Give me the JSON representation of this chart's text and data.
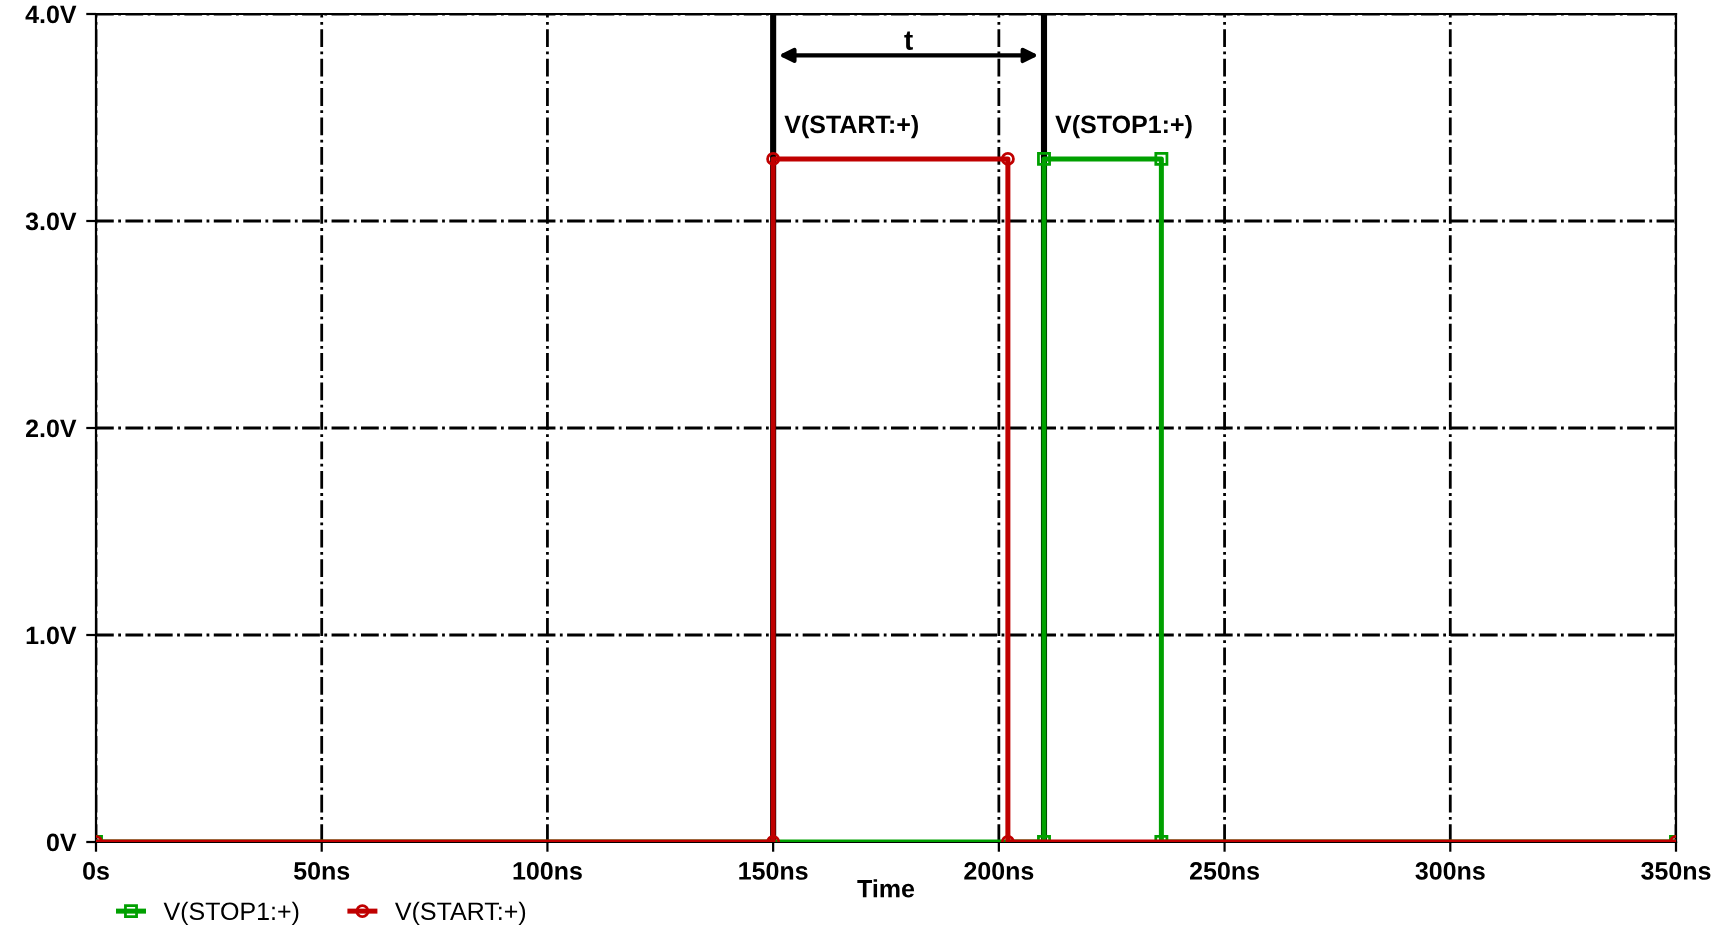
{
  "chart_data": {
    "type": "line",
    "xlabel": "Time",
    "xlim": [
      0,
      350
    ],
    "xticks": [
      {
        "value": 0,
        "label": "0s"
      },
      {
        "value": 50,
        "label": "50ns"
      },
      {
        "value": 100,
        "label": "100ns"
      },
      {
        "value": 150,
        "label": "150ns"
      },
      {
        "value": 200,
        "label": "200ns"
      },
      {
        "value": 250,
        "label": "250ns"
      },
      {
        "value": 300,
        "label": "300ns"
      },
      {
        "value": 350,
        "label": "350ns"
      }
    ],
    "ylim": [
      0,
      4
    ],
    "yticks": [
      {
        "value": 0,
        "label": "0V"
      },
      {
        "value": 1,
        "label": "1.0V"
      },
      {
        "value": 2,
        "label": "2.0V"
      },
      {
        "value": 3,
        "label": "3.0V"
      },
      {
        "value": 4,
        "label": "4.0V"
      }
    ],
    "series": [
      {
        "name": "V(STOP1:+)",
        "color": "#00a000",
        "marker": "square",
        "x": [
          0,
          210,
          210,
          236,
          236,
          350
        ],
        "values": [
          0,
          0,
          3.3,
          3.3,
          0,
          0
        ]
      },
      {
        "name": "V(START:+)",
        "color": "#c00000",
        "marker": "circle",
        "x": [
          0,
          150,
          150,
          202,
          202,
          350
        ],
        "values": [
          0,
          0,
          3.3,
          3.3,
          0,
          0
        ]
      }
    ],
    "ref_lines": [
      {
        "axis": "x",
        "value": 150,
        "color": "#000000"
      },
      {
        "axis": "x",
        "value": 210,
        "color": "#000000"
      }
    ],
    "annotations": [
      "t",
      {
        "text": "V(START:+)",
        "x": 150,
        "y": 3.4
      },
      {
        "text": "V(STOP1:+)",
        "x": 210,
        "y": 3.4
      }
    ],
    "grid": true,
    "line_style": "solid",
    "legend": "bottom left"
  }
}
